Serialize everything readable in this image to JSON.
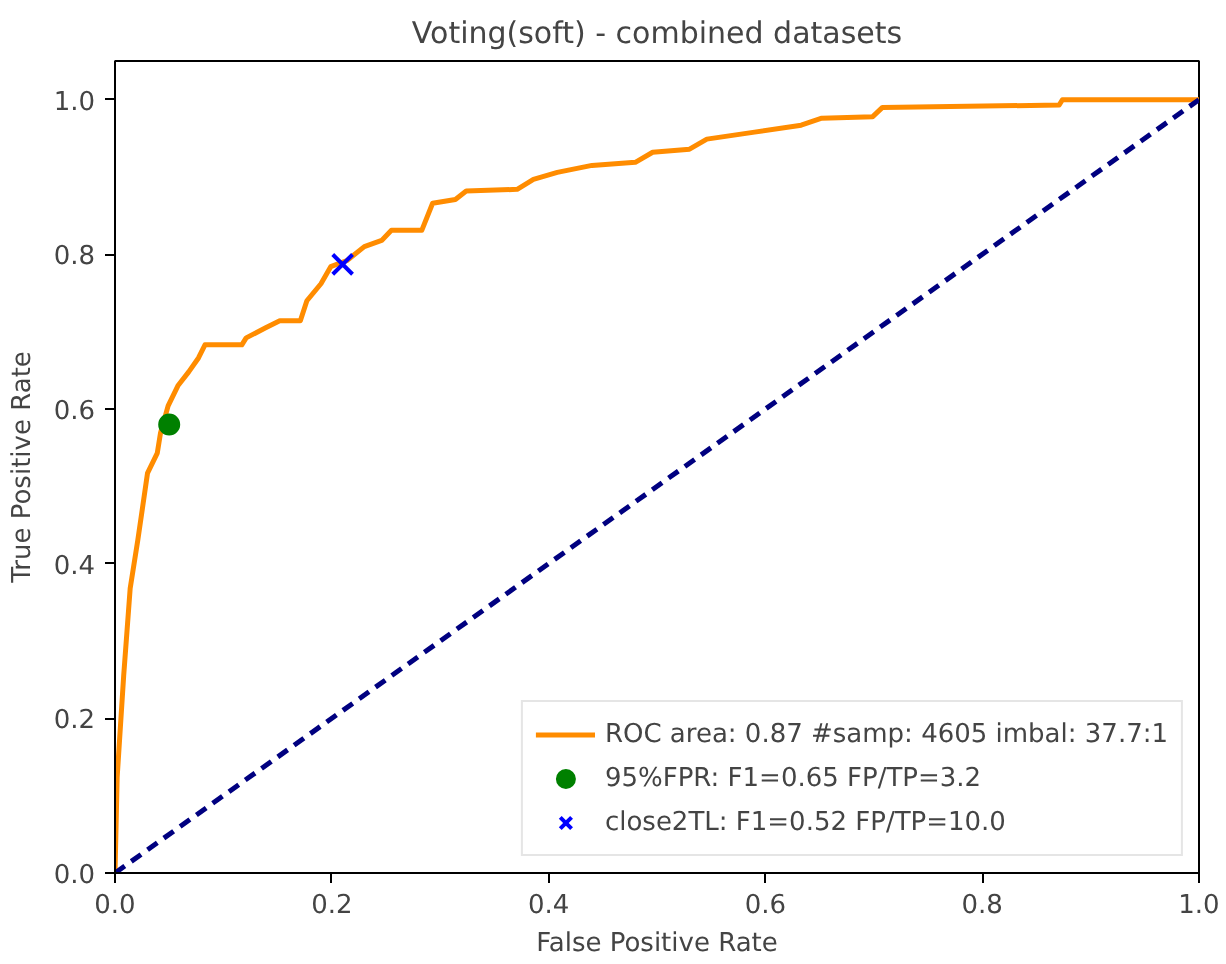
{
  "chart_data": {
    "type": "line",
    "title": "Voting(soft) - combined datasets",
    "xlabel": "False Positive Rate",
    "ylabel": "True Positive Rate",
    "xlim": [
      0,
      1
    ],
    "ylim": [
      0,
      1.05
    ],
    "xticks": [
      {
        "value": 0,
        "label": "0.0"
      },
      {
        "value": 0.2,
        "label": "0.2"
      },
      {
        "value": 0.4,
        "label": "0.4"
      },
      {
        "value": 0.6,
        "label": "0.6"
      },
      {
        "value": 0.8,
        "label": "0.8"
      },
      {
        "value": 1,
        "label": "1.0"
      }
    ],
    "yticks": [
      {
        "value": 0,
        "label": "0.0"
      },
      {
        "value": 0.2,
        "label": "0.2"
      },
      {
        "value": 0.4,
        "label": "0.4"
      },
      {
        "value": 0.6,
        "label": "0.6"
      },
      {
        "value": 0.8,
        "label": "0.8"
      },
      {
        "value": 1,
        "label": "1.0"
      }
    ],
    "grid": false,
    "legend": "bottom right",
    "series": [
      {
        "name": "ROC area: 0.87 #samp: 4605 imbal: 37.7:1",
        "color": "#ff8c00",
        "marker": "none",
        "line_style": "solid",
        "x": [
          0,
          0.002,
          0.008,
          0.014,
          0.021,
          0.03,
          0.039,
          0.042,
          0.049,
          0.058,
          0.068,
          0.077,
          0.083,
          0.117,
          0.121,
          0.139,
          0.152,
          0.171,
          0.177,
          0.19,
          0.199,
          0.214,
          0.23,
          0.246,
          0.255,
          0.283,
          0.293,
          0.314,
          0.324,
          0.371,
          0.386,
          0.408,
          0.44,
          0.48,
          0.496,
          0.53,
          0.546,
          0.59,
          0.633,
          0.652,
          0.699,
          0.708,
          0.871,
          0.874,
          1.0
        ],
        "values": [
          0,
          0.124,
          0.255,
          0.368,
          0.43,
          0.517,
          0.543,
          0.569,
          0.604,
          0.63,
          0.648,
          0.666,
          0.683,
          0.683,
          0.692,
          0.705,
          0.714,
          0.714,
          0.74,
          0.762,
          0.784,
          0.792,
          0.81,
          0.818,
          0.831,
          0.831,
          0.866,
          0.871,
          0.882,
          0.884,
          0.897,
          0.906,
          0.915,
          0.919,
          0.932,
          0.936,
          0.949,
          0.958,
          0.967,
          0.976,
          0.978,
          0.99,
          0.993,
          1.0,
          1.0
        ]
      },
      {
        "color": "#000080",
        "marker": "none",
        "line_style": "dashed",
        "x": [
          0,
          1
        ],
        "values": [
          0,
          1
        ]
      },
      {
        "name": "95%FPR: F1=0.65 FP/TP=3.2",
        "type": "scatter",
        "color": "#008000",
        "marker": "circle",
        "x": [
          0.05
        ],
        "values": [
          0.58
        ]
      },
      {
        "name": "close2TL: F1=0.52 FP/TP=10.0",
        "type": "scatter",
        "color": "#0000ff",
        "marker": "cross",
        "x": [
          0.21
        ],
        "values": [
          0.787
        ]
      }
    ]
  }
}
